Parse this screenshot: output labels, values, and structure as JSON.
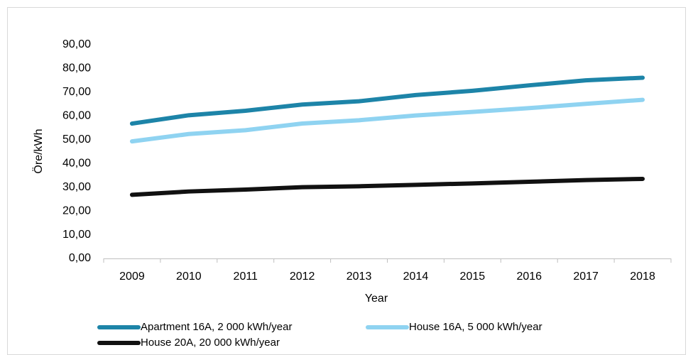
{
  "chart_data": {
    "type": "line",
    "x_label": "Year",
    "y_label": "Öre/kWh",
    "categories": [
      "2009",
      "2010",
      "2011",
      "2012",
      "2013",
      "2014",
      "2015",
      "2016",
      "2017",
      "2018"
    ],
    "series": [
      {
        "name": "Apartment 16A, 2 000 kWh/year",
        "color": "#1d84a8",
        "values": [
          56.8,
          60.3,
          62.2,
          64.8,
          66.2,
          68.8,
          70.6,
          72.9,
          75.0,
          76.1
        ]
      },
      {
        "name": "House 16A, 5 000 kWh/year",
        "color": "#8fd3f1",
        "values": [
          49.3,
          52.4,
          54.0,
          56.8,
          58.2,
          60.2,
          61.7,
          63.3,
          65.1,
          66.8
        ]
      },
      {
        "name": "House 20A, 20 000 kWh/year",
        "color": "#111111",
        "values": [
          26.8,
          28.2,
          29.0,
          30.0,
          30.4,
          31.0,
          31.6,
          32.3,
          33.0,
          33.5
        ]
      }
    ],
    "ylim": [
      0,
      90
    ],
    "yticks": [
      {
        "value": 0,
        "label": "0,00"
      },
      {
        "value": 10,
        "label": "10,00"
      },
      {
        "value": 20,
        "label": "20,00"
      },
      {
        "value": 30,
        "label": "30,00"
      },
      {
        "value": 40,
        "label": "40,00"
      },
      {
        "value": 50,
        "label": "50,00"
      },
      {
        "value": 60,
        "label": "60,00"
      },
      {
        "value": 70,
        "label": "70,00"
      },
      {
        "value": 80,
        "label": "80,00"
      },
      {
        "value": 90,
        "label": "90,00"
      }
    ],
    "grid": false,
    "legend": "bottom"
  }
}
